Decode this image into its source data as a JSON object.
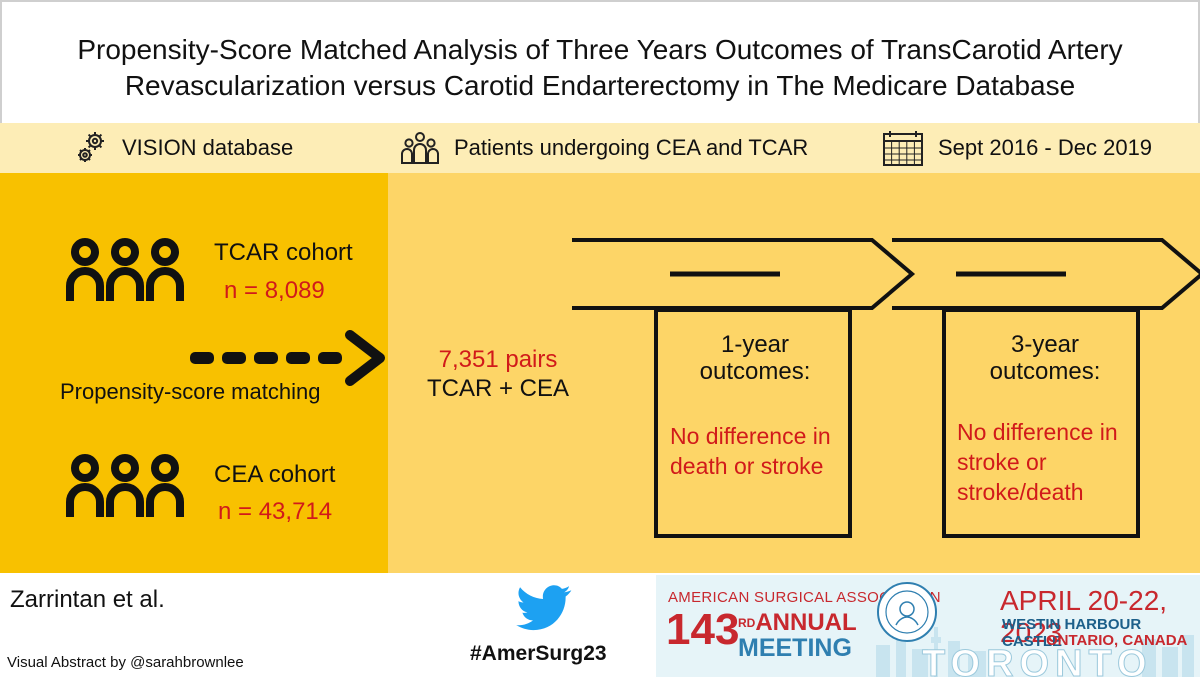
{
  "title": {
    "line1": "Propensity-Score Matched Analysis of Three Years Outcomes of TransCarotid Artery",
    "line2": "Revascularization versus Carotid Endarterectomy in The Medicare Database"
  },
  "info": {
    "database": "VISION database",
    "patients": "Patients undergoing CEA and TCAR",
    "dates": "Sept 2016 - Dec 2019"
  },
  "cohorts": {
    "tcar_label": "TCAR cohort",
    "tcar_n": "n = 8,089",
    "cea_label": "CEA cohort",
    "cea_n": "n = 43,714"
  },
  "matching": {
    "label": "Propensity-score matching",
    "pairs_n": "7,351 pairs",
    "pairs_label": "TCAR + CEA"
  },
  "outcomes": [
    {
      "title_line1": "1-year",
      "title_line2": "outcomes:",
      "result_line1": "No difference in",
      "result_line2": "death or stroke",
      "result_line3": ""
    },
    {
      "title_line1": "3-year",
      "title_line2": "outcomes:",
      "result_line1": "No difference in",
      "result_line2": "stroke or",
      "result_line3": "stroke/death"
    }
  ],
  "footer": {
    "authors": "Zarrintan et al.",
    "credit": "Visual Abstract by @sarahbrownlee",
    "hashtag": "#AmerSurg23"
  },
  "banner": {
    "association": "AMERICAN SURGICAL ASSOCIATION",
    "number": "143",
    "ordinal": "RD",
    "annual": "ANNUAL",
    "meeting": "MEETING",
    "dates": "APRIL 20-22, 2023",
    "venue": "WESTIN HARBOUR CASTLE",
    "location": "ONTARIO, CANADA",
    "city": "TORONTO"
  },
  "colors": {
    "left_panel": "#f8c100",
    "right_panel": "#fdd567",
    "info_band": "#fdedb6",
    "highlight_text": "#d11a1a",
    "twitter_blue": "#1da1f2"
  }
}
